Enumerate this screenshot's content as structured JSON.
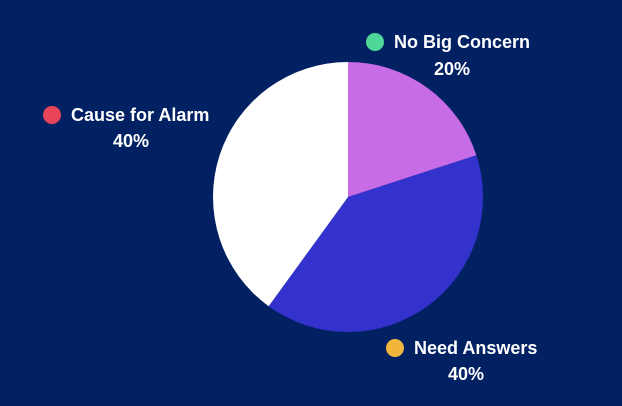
{
  "chart_data": {
    "type": "pie",
    "categories": [
      "No Big Concern",
      "Need Answers",
      "Cause for Alarm"
    ],
    "values": [
      20,
      40,
      40
    ],
    "value_labels": [
      "20%",
      "40%",
      "40%"
    ],
    "colors": [
      "#c76be6",
      "#3432cc",
      "#ffffff"
    ],
    "label_dot_colors": [
      "#4fd79a",
      "#f2b63c",
      "#e8455a"
    ]
  }
}
